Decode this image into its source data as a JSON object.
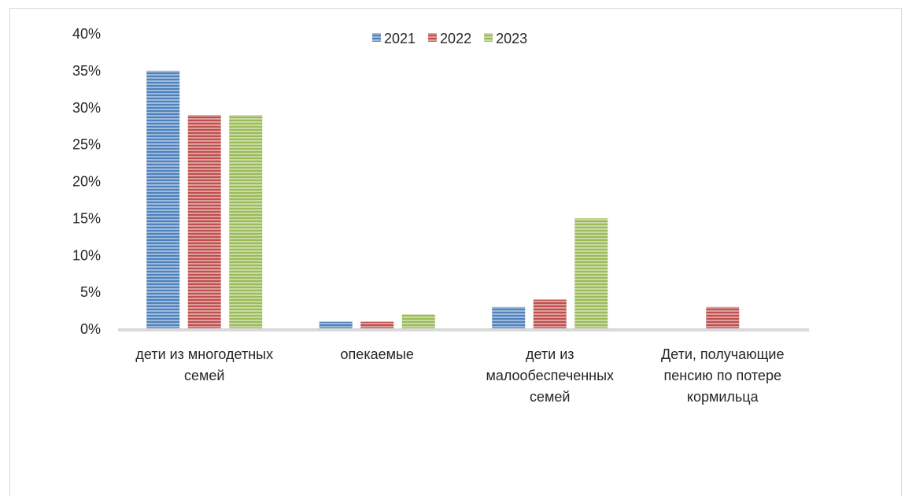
{
  "chart_data": {
    "type": "bar",
    "title": "",
    "xlabel": "",
    "ylabel": "",
    "ylim": [
      0,
      0.4
    ],
    "y_ticks": [
      "0%",
      "5%",
      "10%",
      "15%",
      "20%",
      "25%",
      "30%",
      "35%",
      "40%"
    ],
    "grid": false,
    "legend_position": "top",
    "categories": [
      [
        "дети из многодетных",
        "семей"
      ],
      [
        "опекаемые"
      ],
      [
        "дети из",
        "малообеспеченных",
        "семей"
      ],
      [
        "Дети, получающие",
        "пенсию по потере",
        "кормильца"
      ]
    ],
    "series": [
      {
        "name": "2021",
        "color": "#4F81BD",
        "values": [
          0.35,
          0.01,
          0.03,
          0
        ]
      },
      {
        "name": "2022",
        "color": "#C0504D",
        "values": [
          0.29,
          0.01,
          0.04,
          0.03
        ]
      },
      {
        "name": "2023",
        "color": "#9BBB59",
        "values": [
          0.29,
          0.02,
          0.15,
          0
        ]
      }
    ]
  }
}
